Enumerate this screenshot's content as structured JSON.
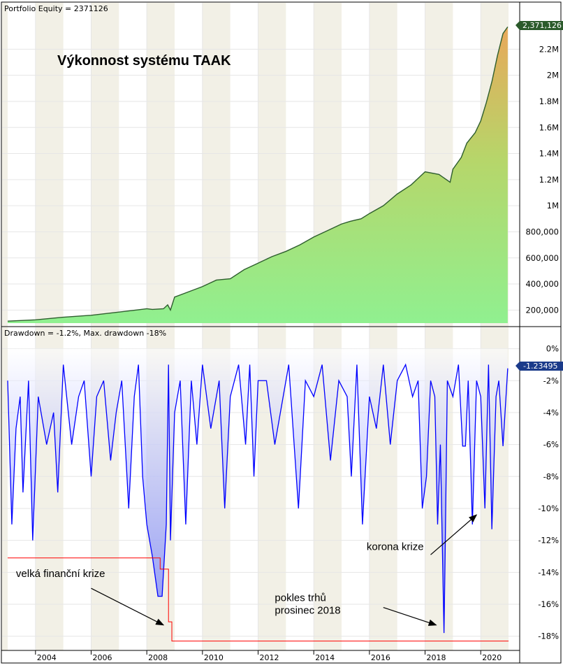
{
  "chart_data": [
    {
      "type": "area",
      "header": "Portfolio Equity = 2371126",
      "title": "Výkonnost systému TAAK",
      "y_ticks": [
        "200,000",
        "400,000",
        "600,000",
        "800,000",
        "1M",
        "1.2M",
        "1.4M",
        "1.6M",
        "1.8M",
        "2M",
        "2.2M"
      ],
      "y_tick_values": [
        200000,
        400000,
        600000,
        800000,
        1000000,
        1200000,
        1400000,
        1600000,
        1800000,
        2000000,
        2200000
      ],
      "ylim": [
        100000,
        2470000
      ],
      "last_value": 2371126,
      "last_value_label": "2,371,126",
      "x_years": [
        2003.0,
        2004.0,
        2005.0,
        2006.0,
        2007.0,
        2007.8,
        2008.0,
        2008.2,
        2008.6,
        2008.75,
        2008.85,
        2009.0,
        2009.5,
        2010.0,
        2010.5,
        2011.0,
        2011.5,
        2012.0,
        2012.5,
        2013.0,
        2013.5,
        2014.0,
        2014.5,
        2015.0,
        2015.3,
        2015.7,
        2016.0,
        2016.5,
        2017.0,
        2017.5,
        2018.0,
        2018.5,
        2018.9,
        2019.0,
        2019.3,
        2019.5,
        2019.8,
        2020.0,
        2020.1,
        2020.2,
        2020.4,
        2020.6,
        2020.8,
        2020.97
      ],
      "y_values": [
        115000,
        125000,
        145000,
        160000,
        185000,
        205000,
        210000,
        205000,
        210000,
        240000,
        200000,
        300000,
        340000,
        380000,
        430000,
        440000,
        510000,
        560000,
        610000,
        650000,
        700000,
        760000,
        810000,
        860000,
        880000,
        900000,
        940000,
        1000000,
        1090000,
        1160000,
        1260000,
        1240000,
        1180000,
        1280000,
        1370000,
        1480000,
        1560000,
        1650000,
        1720000,
        1790000,
        1950000,
        2150000,
        2320000,
        2371126
      ]
    },
    {
      "type": "area",
      "header": "Drawdown = -1.2%, Max. drawdown -18%",
      "y_ticks": [
        "0%",
        "-2%",
        "-4%",
        "-6%",
        "-8%",
        "-10%",
        "-12%",
        "-14%",
        "-16%",
        "-18%"
      ],
      "y_tick_values": [
        0,
        -2,
        -4,
        -6,
        -8,
        -10,
        -12,
        -14,
        -16,
        -18
      ],
      "ylim": [
        -18.8,
        0.2
      ],
      "last_value_label": "-1.23495",
      "x_ticks": [
        "2004",
        "2006",
        "2008",
        "2010",
        "2012",
        "2014",
        "2016",
        "2018",
        "2020"
      ],
      "x_tick_values": [
        2004,
        2006,
        2008,
        2010,
        2012,
        2014,
        2016,
        2018,
        2020
      ],
      "xlim": [
        2002.8,
        2021.4
      ],
      "x_years": [
        2003.0,
        2003.15,
        2003.3,
        2003.45,
        2003.55,
        2003.75,
        2003.9,
        2004.1,
        2004.4,
        2004.65,
        2004.8,
        2005.0,
        2005.3,
        2005.55,
        2005.75,
        2006.0,
        2006.2,
        2006.45,
        2006.7,
        2006.9,
        2007.1,
        2007.35,
        2007.55,
        2007.7,
        2007.85,
        2008.0,
        2008.2,
        2008.4,
        2008.55,
        2008.7,
        2008.78,
        2008.85,
        2009.0,
        2009.2,
        2009.4,
        2009.6,
        2009.8,
        2010.0,
        2010.3,
        2010.6,
        2010.8,
        2011.0,
        2011.3,
        2011.55,
        2011.7,
        2011.85,
        2012.0,
        2012.3,
        2012.6,
        2012.9,
        2013.1,
        2013.45,
        2013.7,
        2014.0,
        2014.3,
        2014.6,
        2014.9,
        2015.2,
        2015.35,
        2015.55,
        2015.75,
        2016.0,
        2016.25,
        2016.5,
        2016.75,
        2017.0,
        2017.3,
        2017.55,
        2017.75,
        2017.9,
        2018.05,
        2018.2,
        2018.35,
        2018.45,
        2018.55,
        2018.68,
        2018.72,
        2018.8,
        2019.0,
        2019.2,
        2019.35,
        2019.45,
        2019.55,
        2019.7,
        2019.85,
        2020.0,
        2020.15,
        2020.28,
        2020.4,
        2020.55,
        2020.65,
        2020.8,
        2020.97
      ],
      "dd_values": [
        -2,
        -11,
        -5,
        -3,
        -9,
        -2,
        -12,
        -3,
        -6,
        -4,
        -9,
        -1,
        -6,
        -3,
        -2,
        -8,
        -3,
        -2,
        -7,
        -4,
        -2,
        -10,
        -3,
        -1,
        -8,
        -11,
        -13,
        -15.5,
        -15.5,
        -11,
        -1,
        -12,
        -4,
        -2,
        -11,
        -2,
        -6,
        -1,
        -5,
        -2,
        -10,
        -3,
        -1,
        -6,
        -1,
        -8,
        -2,
        -2,
        -6,
        -3,
        -1,
        -10,
        -2,
        -3,
        -1,
        -7,
        -2,
        -3,
        -8,
        -1,
        -11,
        -3,
        -5,
        -1,
        -6,
        -2,
        -1,
        -3,
        -2,
        -10,
        -8,
        -2,
        -3,
        -11,
        -6,
        -17.8,
        -13,
        -2,
        -3,
        -1,
        -6.1,
        -6.1,
        -2,
        -11,
        -2,
        -3,
        -10,
        -1,
        -11.3,
        -3,
        -2,
        -6.1,
        -1.23
      ],
      "max_dd_x": [
        2003.0,
        2008.48,
        2008.48,
        2008.78,
        2008.78,
        2008.9,
        2008.9,
        2021.0
      ],
      "max_dd_y": [
        -13.1,
        -13.1,
        -13.8,
        -13.8,
        -17.1,
        -17.1,
        -18.3,
        -18.3
      ],
      "annotations": [
        {
          "text": "velká finanční krize",
          "label_x": 2003.3,
          "label_y": -14.3,
          "arrow_from_x": 2006.0,
          "arrow_from_y": -15.0,
          "arrow_to_x": 2008.6,
          "arrow_to_y": -17.3
        },
        {
          "text": "pokles trhů",
          "label_x": 2012.6,
          "label_y": -15.8,
          "arrow_from_x": 2016.5,
          "arrow_from_y": -16.2,
          "arrow_to_x": 2018.4,
          "arrow_to_y": -17.3
        },
        {
          "text": "prosinec 2018",
          "label_x": 2012.6,
          "label_y": -16.6
        },
        {
          "text": "korona krize",
          "label_x": 2015.9,
          "label_y": -12.6,
          "arrow_from_x": 2018.2,
          "arrow_from_y": -12.9,
          "arrow_to_x": 2019.85,
          "arrow_to_y": -10.4
        }
      ]
    }
  ],
  "colors": {
    "equity_line": "#2e5e2e",
    "equity_fill_top": "#e8a85a",
    "equity_fill_mid": "#b6d66a",
    "equity_fill_bottom": "#90f090",
    "drawdown_line": "#0000ff",
    "drawdown_fill": "#7080ff",
    "max_dd_line": "#ff0000",
    "last_tag_equity": "#2b5a2b",
    "last_tag_dd": "#1a3a8a",
    "year_band_dark": "#f2f0e6",
    "year_band_light": "#fbfaf6",
    "grid": "#e6e6e6"
  }
}
